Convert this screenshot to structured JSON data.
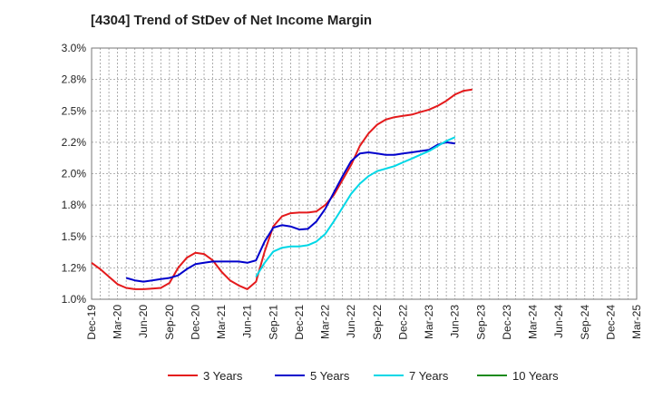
{
  "chart_data": {
    "type": "line",
    "title": "[4304]  Trend of StDev of Net Income Margin",
    "xlabel": "",
    "ylabel": "",
    "x_tick_labels": [
      "Dec-19",
      "Mar-20",
      "Jun-20",
      "Sep-20",
      "Dec-20",
      "Mar-21",
      "Jun-21",
      "Sep-21",
      "Dec-21",
      "Mar-22",
      "Jun-22",
      "Sep-22",
      "Dec-22",
      "Mar-23",
      "Jun-23",
      "Sep-23",
      "Dec-23",
      "Mar-24",
      "Jun-24",
      "Sep-24",
      "Dec-24",
      "Mar-25"
    ],
    "y_tick_labels": [
      "1.0%",
      "1.2%",
      "1.5%",
      "1.8%",
      "2.0%",
      "2.2%",
      "2.5%",
      "2.8%",
      "3.0%"
    ],
    "ylim": [
      1.0,
      3.0
    ],
    "grid": true,
    "legend_position": "bottom",
    "series": [
      {
        "name": "3 Years",
        "color": "#e41a1c",
        "points": [
          [
            0,
            1.29
          ],
          [
            1,
            1.24
          ],
          [
            2,
            1.18
          ],
          [
            3,
            1.12
          ],
          [
            4,
            1.09
          ],
          [
            5,
            1.08
          ],
          [
            6,
            1.08
          ],
          [
            7,
            1.085
          ],
          [
            8,
            1.09
          ],
          [
            9,
            1.13
          ],
          [
            10,
            1.25
          ],
          [
            11,
            1.33
          ],
          [
            12,
            1.37
          ],
          [
            13,
            1.36
          ],
          [
            14,
            1.31
          ],
          [
            15,
            1.22
          ],
          [
            16,
            1.15
          ],
          [
            17,
            1.11
          ],
          [
            18,
            1.08
          ],
          [
            19,
            1.14
          ],
          [
            20,
            1.38
          ],
          [
            21,
            1.58
          ],
          [
            22,
            1.66
          ],
          [
            23,
            1.685
          ],
          [
            24,
            1.69
          ],
          [
            25,
            1.69
          ],
          [
            26,
            1.7
          ],
          [
            27,
            1.75
          ],
          [
            28,
            1.83
          ],
          [
            29,
            1.95
          ],
          [
            30,
            2.07
          ],
          [
            31,
            2.22
          ],
          [
            32,
            2.32
          ],
          [
            33,
            2.39
          ],
          [
            34,
            2.43
          ],
          [
            35,
            2.45
          ],
          [
            36,
            2.46
          ],
          [
            37,
            2.47
          ],
          [
            38,
            2.49
          ],
          [
            39,
            2.51
          ],
          [
            40,
            2.54
          ],
          [
            41,
            2.58
          ],
          [
            42,
            2.63
          ],
          [
            43,
            2.66
          ],
          [
            44,
            2.67
          ]
        ]
      },
      {
        "name": "5 Years",
        "color": "#0000cc",
        "points": [
          [
            4,
            1.17
          ],
          [
            5,
            1.15
          ],
          [
            6,
            1.14
          ],
          [
            7,
            1.15
          ],
          [
            8,
            1.16
          ],
          [
            9,
            1.17
          ],
          [
            10,
            1.19
          ],
          [
            11,
            1.24
          ],
          [
            12,
            1.28
          ],
          [
            13,
            1.29
          ],
          [
            14,
            1.3
          ],
          [
            15,
            1.3
          ],
          [
            16,
            1.3
          ],
          [
            17,
            1.3
          ],
          [
            18,
            1.29
          ],
          [
            19,
            1.31
          ],
          [
            20,
            1.46
          ],
          [
            21,
            1.57
          ],
          [
            22,
            1.59
          ],
          [
            23,
            1.58
          ],
          [
            24,
            1.555
          ],
          [
            25,
            1.56
          ],
          [
            26,
            1.62
          ],
          [
            27,
            1.72
          ],
          [
            28,
            1.85
          ],
          [
            29,
            1.98
          ],
          [
            30,
            2.1
          ],
          [
            31,
            2.16
          ],
          [
            32,
            2.17
          ],
          [
            33,
            2.16
          ],
          [
            34,
            2.15
          ],
          [
            35,
            2.15
          ],
          [
            36,
            2.16
          ],
          [
            37,
            2.17
          ],
          [
            38,
            2.18
          ],
          [
            39,
            2.19
          ],
          [
            40,
            2.23
          ],
          [
            41,
            2.25
          ],
          [
            42,
            2.24
          ]
        ]
      },
      {
        "name": "7 Years",
        "color": "#00d7e6",
        "points": [
          [
            19,
            1.18
          ],
          [
            20,
            1.29
          ],
          [
            21,
            1.38
          ],
          [
            22,
            1.41
          ],
          [
            23,
            1.42
          ],
          [
            24,
            1.42
          ],
          [
            25,
            1.43
          ],
          [
            26,
            1.46
          ],
          [
            27,
            1.52
          ],
          [
            28,
            1.62
          ],
          [
            29,
            1.73
          ],
          [
            30,
            1.84
          ],
          [
            31,
            1.92
          ],
          [
            32,
            1.98
          ],
          [
            33,
            2.02
          ],
          [
            34,
            2.04
          ],
          [
            35,
            2.06
          ],
          [
            36,
            2.09
          ],
          [
            37,
            2.12
          ],
          [
            38,
            2.15
          ],
          [
            39,
            2.18
          ],
          [
            40,
            2.22
          ],
          [
            41,
            2.26
          ],
          [
            42,
            2.29
          ]
        ]
      },
      {
        "name": "10 Years",
        "color": "#1a8a1a",
        "points": []
      }
    ]
  }
}
